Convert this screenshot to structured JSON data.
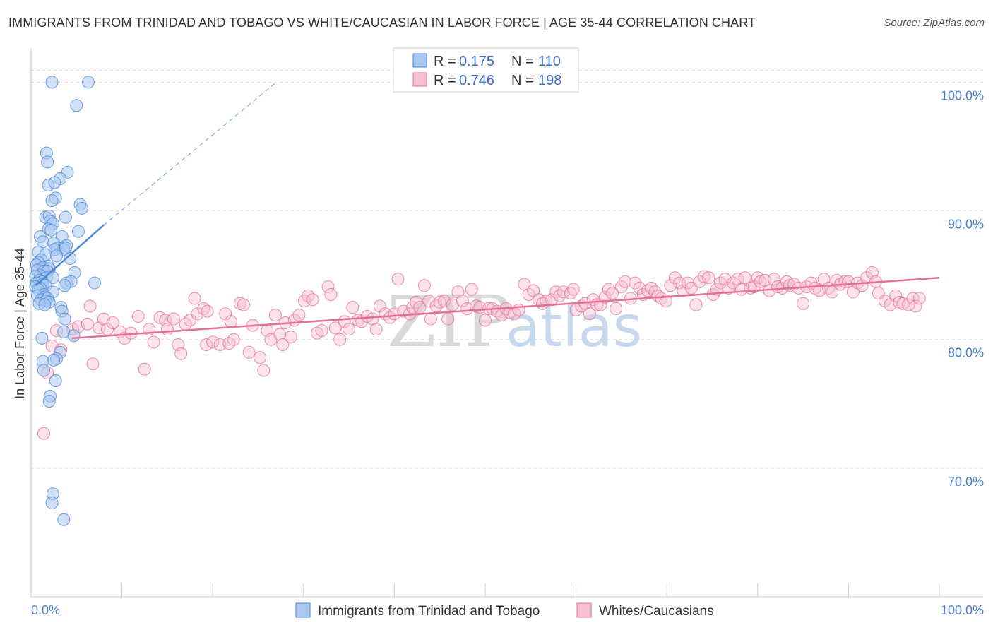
{
  "title": "IMMIGRANTS FROM TRINIDAD AND TOBAGO VS WHITE/CAUCASIAN IN LABOR FORCE | AGE 35-44 CORRELATION CHART",
  "source": "Source: ZipAtlas.com",
  "watermark": {
    "zip": "ZIP",
    "atlas": "atlas"
  },
  "chart_data": {
    "type": "scatter",
    "title": "IMMIGRANTS FROM TRINIDAD AND TOBAGO VS WHITE/CAUCASIAN IN LABOR FORCE | AGE 35-44 CORRELATION CHART",
    "xlabel": "",
    "ylabel": "In Labor Force | Age 35-44",
    "xlim": [
      0,
      100
    ],
    "ylim": [
      60,
      102
    ],
    "x_tick_labels": [
      "0.0%",
      "100.0%"
    ],
    "y_ticks": [
      70,
      80,
      90,
      100
    ],
    "y_tick_labels": [
      "70.0%",
      "80.0%",
      "90.0%",
      "100.0%"
    ],
    "grid": true,
    "legend_position": "top-center",
    "series": [
      {
        "name": "Immigrants from Trinidad and Tobago",
        "color": "#4a86d8",
        "fill": "#a9c8f0",
        "R": "0.175",
        "N": "110",
        "trend": {
          "x": [
            0.5,
            8.0
          ],
          "y": [
            84.2,
            88.9
          ],
          "dashed_to": [
            27.0,
            100.0
          ]
        },
        "points": [
          [
            2.3,
            100
          ],
          [
            6.3,
            100
          ],
          [
            5.0,
            98.2
          ],
          [
            1.7,
            94.5
          ],
          [
            1.8,
            93.8
          ],
          [
            4.0,
            93.0
          ],
          [
            3.2,
            92.5
          ],
          [
            1.9,
            92.0
          ],
          [
            2.6,
            92.2
          ],
          [
            2.7,
            91.0
          ],
          [
            2.3,
            90.8
          ],
          [
            5.4,
            90.5
          ],
          [
            5.6,
            90.2
          ],
          [
            1.6,
            89.5
          ],
          [
            2.0,
            89.6
          ],
          [
            3.8,
            89.5
          ],
          [
            2.1,
            89.2
          ],
          [
            2.4,
            89.0
          ],
          [
            1.9,
            88.6
          ],
          [
            2.2,
            88.5
          ],
          [
            5.2,
            88.4
          ],
          [
            1.0,
            88.0
          ],
          [
            3.4,
            88.0
          ],
          [
            1.3,
            87.6
          ],
          [
            2.5,
            87.5
          ],
          [
            3.9,
            87.3
          ],
          [
            2.9,
            87.1
          ],
          [
            3.6,
            87.0
          ],
          [
            2.6,
            87.0
          ],
          [
            3.8,
            87.1
          ],
          [
            0.8,
            86.8
          ],
          [
            1.6,
            86.6
          ],
          [
            2.8,
            86.5
          ],
          [
            4.3,
            86.3
          ],
          [
            1.1,
            86.2
          ],
          [
            0.8,
            86.0
          ],
          [
            0.6,
            85.8
          ],
          [
            1.9,
            85.7
          ],
          [
            1.3,
            85.6
          ],
          [
            2.0,
            85.5
          ],
          [
            0.7,
            85.4
          ],
          [
            1.4,
            85.3
          ],
          [
            1.8,
            85.3
          ],
          [
            4.8,
            85.2
          ],
          [
            1.0,
            85.0
          ],
          [
            0.5,
            84.9
          ],
          [
            1.7,
            84.8
          ],
          [
            2.4,
            84.8
          ],
          [
            0.9,
            84.6
          ],
          [
            1.2,
            84.5
          ],
          [
            0.6,
            84.4
          ],
          [
            3.9,
            84.4
          ],
          [
            4.4,
            84.5
          ],
          [
            7.0,
            84.4
          ],
          [
            1.3,
            84.3
          ],
          [
            1.6,
            84.2
          ],
          [
            0.5,
            84.1
          ],
          [
            3.7,
            84.2
          ],
          [
            1.0,
            84.0
          ],
          [
            0.8,
            83.9
          ],
          [
            2.4,
            83.7
          ],
          [
            1.4,
            83.5
          ],
          [
            0.7,
            83.4
          ],
          [
            1.5,
            83.3
          ],
          [
            1.8,
            83.2
          ],
          [
            1.1,
            83.1
          ],
          [
            1.6,
            83.0
          ],
          [
            2.0,
            82.9
          ],
          [
            0.9,
            82.8
          ],
          [
            1.5,
            82.7
          ],
          [
            3.3,
            82.5
          ],
          [
            3.4,
            82.2
          ],
          [
            3.7,
            81.6
          ],
          [
            3.6,
            80.6
          ],
          [
            4.7,
            80.3
          ],
          [
            1.2,
            80.1
          ],
          [
            3.2,
            79.0
          ],
          [
            2.8,
            78.5
          ],
          [
            1.3,
            78.3
          ],
          [
            2.5,
            78.4
          ],
          [
            1.4,
            77.6
          ],
          [
            2.7,
            76.8
          ],
          [
            2.1,
            75.6
          ],
          [
            2.0,
            75.2
          ],
          [
            2.4,
            68.0
          ],
          [
            2.3,
            67.3
          ],
          [
            3.6,
            66.0
          ]
        ]
      },
      {
        "name": "Whites/Caucasians",
        "color": "#e56f98",
        "fill": "#f6bfd2",
        "R": "0.746",
        "N": "198",
        "trend": {
          "x": [
            4.5,
            100
          ],
          "y": [
            80.1,
            84.8
          ]
        },
        "points": [
          [
            1.4,
            72.7
          ],
          [
            1.8,
            77.4
          ],
          [
            2.3,
            79.5
          ],
          [
            3.3,
            79.2
          ],
          [
            2.8,
            80.7
          ],
          [
            4.6,
            80.8
          ],
          [
            5.2,
            81.0
          ],
          [
            6.2,
            81.2
          ],
          [
            6.5,
            82.6
          ],
          [
            6.8,
            78.1
          ],
          [
            7.5,
            80.9
          ],
          [
            8.0,
            81.6
          ],
          [
            8.4,
            80.8
          ],
          [
            9.0,
            81.3
          ],
          [
            9.8,
            80.6
          ],
          [
            10.3,
            80.1
          ],
          [
            11.0,
            80.5
          ],
          [
            11.8,
            81.8
          ],
          [
            12.5,
            77.7
          ],
          [
            13.0,
            80.8
          ],
          [
            13.5,
            79.8
          ],
          [
            14.2,
            81.7
          ],
          [
            14.8,
            81.5
          ],
          [
            15.0,
            80.8
          ],
          [
            15.7,
            81.6
          ],
          [
            16.2,
            79.6
          ],
          [
            16.5,
            78.9
          ],
          [
            17.0,
            81.2
          ],
          [
            17.5,
            81.5
          ],
          [
            18.0,
            83.2
          ],
          [
            18.3,
            82.0
          ],
          [
            19.0,
            82.4
          ],
          [
            19.4,
            82.2
          ],
          [
            19.3,
            79.6
          ],
          [
            20.0,
            79.8
          ],
          [
            20.8,
            79.6
          ],
          [
            21.4,
            82.0
          ],
          [
            21.8,
            79.7
          ],
          [
            22.0,
            81.4
          ],
          [
            22.3,
            80.0
          ],
          [
            23.0,
            82.8
          ],
          [
            23.4,
            82.7
          ],
          [
            24.0,
            79.0
          ],
          [
            24.4,
            81.1
          ],
          [
            25.2,
            78.6
          ],
          [
            25.6,
            77.6
          ],
          [
            26.0,
            80.7
          ],
          [
            26.4,
            80.0
          ],
          [
            26.9,
            81.9
          ],
          [
            27.4,
            80.4
          ],
          [
            27.7,
            79.6
          ],
          [
            28.0,
            81.3
          ],
          [
            28.6,
            80.2
          ],
          [
            29.0,
            81.5
          ],
          [
            29.5,
            81.9
          ],
          [
            30.1,
            83.0
          ],
          [
            30.5,
            83.4
          ],
          [
            31.0,
            83.1
          ],
          [
            31.5,
            80.5
          ],
          [
            32.0,
            80.7
          ],
          [
            32.7,
            84.1
          ],
          [
            33.0,
            83.5
          ],
          [
            33.5,
            80.9
          ],
          [
            34.0,
            80.0
          ],
          [
            34.5,
            81.4
          ],
          [
            35.0,
            80.8
          ],
          [
            35.4,
            82.5
          ],
          [
            36.0,
            81.5
          ],
          [
            36.4,
            81.4
          ],
          [
            37.0,
            81.8
          ],
          [
            37.6,
            81.6
          ],
          [
            38.0,
            80.8
          ],
          [
            38.4,
            82.6
          ],
          [
            39.0,
            82.0
          ],
          [
            39.5,
            81.7
          ],
          [
            40.0,
            82.0
          ],
          [
            40.4,
            84.7
          ],
          [
            41.0,
            82.2
          ],
          [
            41.7,
            82.0
          ],
          [
            42.0,
            82.5
          ],
          [
            42.4,
            82.9
          ],
          [
            42.8,
            82.5
          ],
          [
            43.3,
            84.2
          ],
          [
            43.8,
            83.0
          ],
          [
            44.0,
            81.6
          ],
          [
            44.6,
            82.6
          ],
          [
            45.0,
            82.9
          ],
          [
            45.5,
            83.0
          ],
          [
            45.9,
            81.6
          ],
          [
            46.4,
            82.7
          ],
          [
            47.0,
            83.7
          ],
          [
            47.5,
            83.0
          ],
          [
            48.0,
            82.4
          ],
          [
            48.5,
            83.9
          ],
          [
            49.0,
            82.6
          ],
          [
            49.4,
            82.5
          ],
          [
            50.0,
            81.5
          ],
          [
            50.4,
            82.4
          ],
          [
            50.8,
            82.4
          ],
          [
            51.3,
            82.2
          ],
          [
            51.8,
            81.9
          ],
          [
            52.3,
            82.4
          ],
          [
            52.7,
            82.1
          ],
          [
            53.2,
            82.0
          ],
          [
            53.7,
            82.3
          ],
          [
            54.3,
            84.3
          ],
          [
            54.8,
            83.5
          ],
          [
            55.3,
            83.8
          ],
          [
            55.9,
            83.1
          ],
          [
            56.3,
            82.8
          ],
          [
            56.7,
            83.0
          ],
          [
            57.3,
            83.1
          ],
          [
            57.8,
            83.7
          ],
          [
            58.2,
            83.4
          ],
          [
            58.6,
            83.7
          ],
          [
            59.4,
            83.6
          ],
          [
            59.7,
            83.9
          ],
          [
            60.0,
            82.3
          ],
          [
            60.6,
            82.6
          ],
          [
            61.0,
            82.8
          ],
          [
            61.5,
            82.0
          ],
          [
            61.9,
            83.1
          ],
          [
            62.3,
            82.7
          ],
          [
            62.7,
            82.7
          ],
          [
            63.2,
            83.3
          ],
          [
            63.6,
            83.9
          ],
          [
            64.0,
            83.6
          ],
          [
            64.4,
            82.4
          ],
          [
            65.0,
            84.1
          ],
          [
            65.4,
            84.5
          ],
          [
            66.0,
            83.2
          ],
          [
            66.5,
            84.4
          ],
          [
            67.0,
            84.0
          ],
          [
            67.4,
            83.5
          ],
          [
            67.9,
            83.8
          ],
          [
            68.3,
            84.0
          ],
          [
            68.7,
            83.7
          ],
          [
            69.0,
            83.4
          ],
          [
            69.4,
            83.2
          ],
          [
            69.9,
            83.0
          ],
          [
            70.4,
            84.2
          ],
          [
            70.9,
            84.8
          ],
          [
            71.4,
            84.4
          ],
          [
            71.8,
            83.8
          ],
          [
            72.3,
            84.4
          ],
          [
            72.7,
            84.0
          ],
          [
            73.2,
            82.7
          ],
          [
            73.6,
            84.5
          ],
          [
            74.1,
            84.9
          ],
          [
            74.6,
            84.8
          ],
          [
            75.1,
            83.5
          ],
          [
            75.5,
            83.9
          ],
          [
            75.9,
            84.4
          ],
          [
            76.4,
            84.7
          ],
          [
            76.8,
            84.0
          ],
          [
            77.3,
            84.4
          ],
          [
            77.8,
            84.7
          ],
          [
            78.2,
            83.9
          ],
          [
            78.6,
            84.8
          ],
          [
            79.2,
            84.0
          ],
          [
            79.6,
            84.1
          ],
          [
            80.0,
            84.8
          ],
          [
            80.3,
            84.5
          ],
          [
            80.8,
            84.6
          ],
          [
            81.3,
            83.8
          ],
          [
            81.8,
            84.7
          ],
          [
            82.2,
            84.1
          ],
          [
            82.7,
            84.0
          ],
          [
            83.2,
            84.5
          ],
          [
            83.5,
            84.2
          ],
          [
            84.0,
            84.3
          ],
          [
            84.5,
            84.0
          ],
          [
            85.0,
            82.8
          ],
          [
            85.4,
            84.1
          ],
          [
            85.9,
            84.4
          ],
          [
            86.3,
            84.0
          ],
          [
            86.8,
            83.8
          ],
          [
            87.3,
            84.7
          ],
          [
            87.8,
            84.0
          ],
          [
            88.2,
            83.7
          ],
          [
            88.7,
            84.6
          ],
          [
            89.1,
            84.3
          ],
          [
            89.6,
            84.5
          ],
          [
            90.0,
            84.5
          ],
          [
            90.5,
            83.7
          ],
          [
            91.0,
            84.4
          ],
          [
            91.5,
            84.2
          ],
          [
            92.0,
            84.8
          ],
          [
            92.6,
            85.2
          ],
          [
            93.0,
            84.5
          ],
          [
            93.3,
            83.6
          ],
          [
            94.0,
            83.0
          ],
          [
            94.6,
            82.7
          ],
          [
            95.2,
            83.4
          ],
          [
            95.6,
            82.9
          ],
          [
            96.0,
            82.8
          ],
          [
            96.6,
            82.7
          ],
          [
            97.1,
            83.2
          ],
          [
            97.4,
            82.6
          ],
          [
            97.8,
            83.2
          ]
        ]
      }
    ]
  }
}
